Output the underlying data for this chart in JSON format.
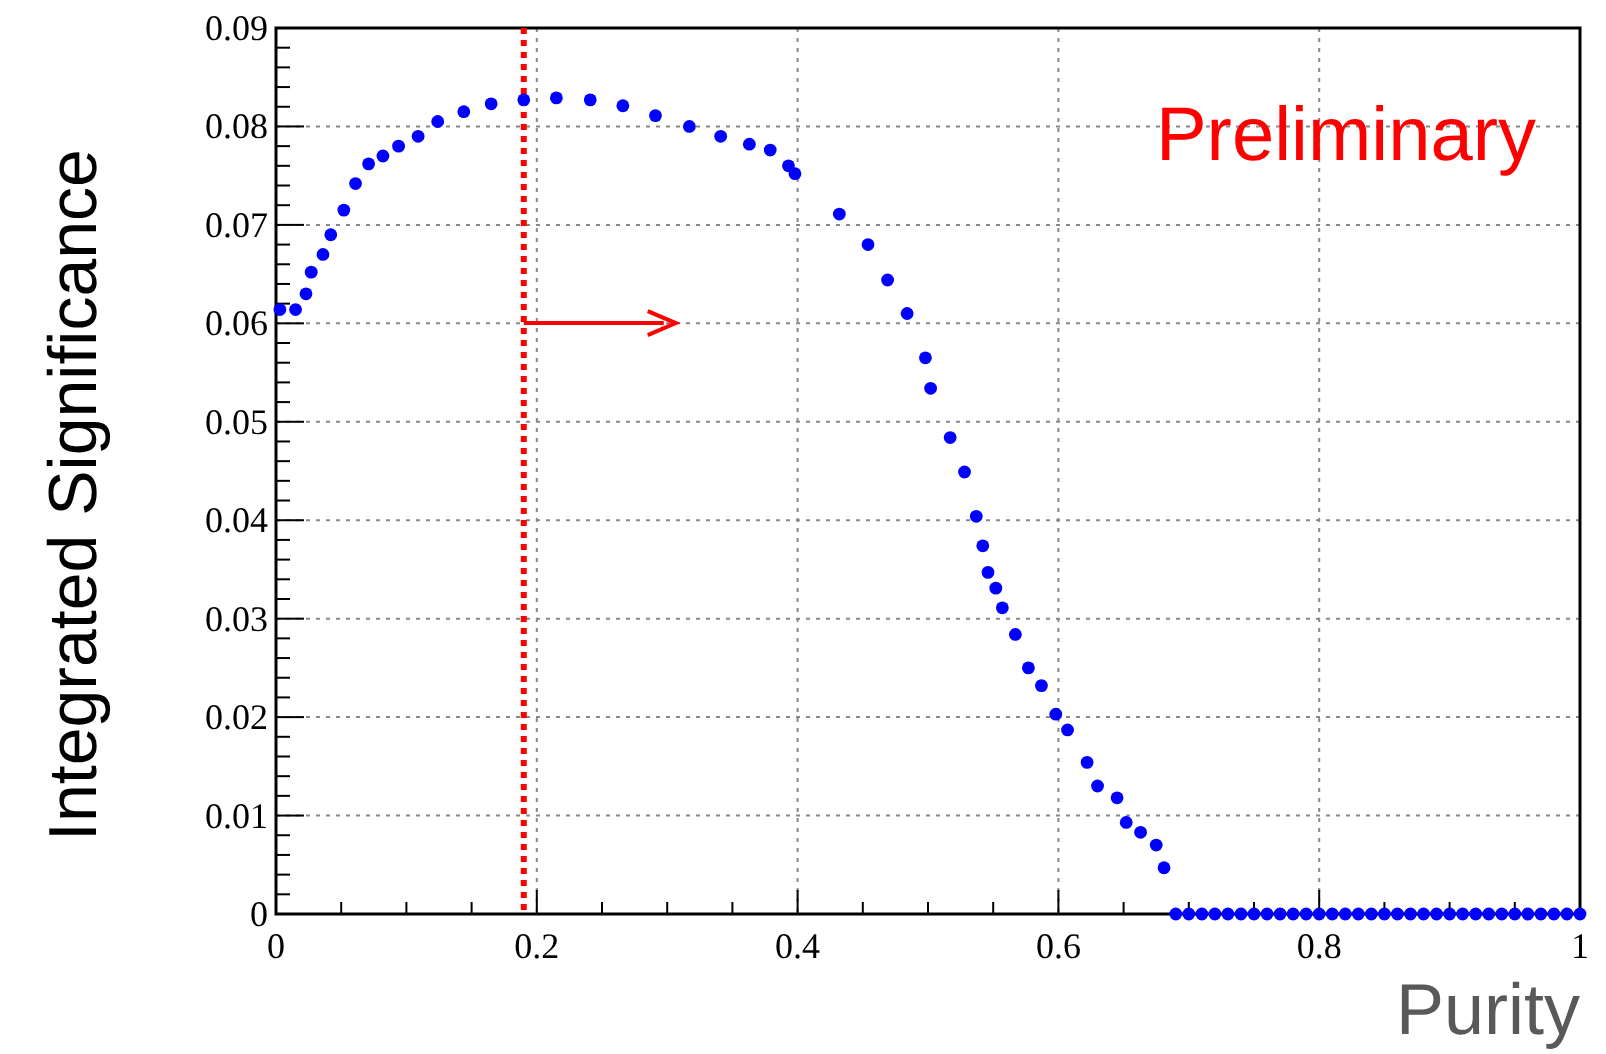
{
  "chart_data": {
    "type": "scatter",
    "xlabel": "Purity",
    "ylabel": "Integrated Significance",
    "annotations": [
      "Preliminary"
    ],
    "x": [
      0.003,
      0.015,
      0.023,
      0.027,
      0.036,
      0.042,
      0.052,
      0.061,
      0.071,
      0.082,
      0.094,
      0.109,
      0.124,
      0.144,
      0.165,
      0.19,
      0.215,
      0.241,
      0.266,
      0.291,
      0.317,
      0.341,
      0.363,
      0.379,
      0.393,
      0.398,
      0.432,
      0.454,
      0.469,
      0.484,
      0.498,
      0.502,
      0.517,
      0.528,
      0.537,
      0.542,
      0.546,
      0.552,
      0.557,
      0.567,
      0.577,
      0.587,
      0.598,
      0.607,
      0.622,
      0.63,
      0.645,
      0.652,
      0.663,
      0.675,
      0.681,
      0.69,
      0.7,
      0.71,
      0.72,
      0.73,
      0.74,
      0.75,
      0.76,
      0.77,
      0.78,
      0.79,
      0.8,
      0.81,
      0.82,
      0.83,
      0.84,
      0.85,
      0.86,
      0.87,
      0.88,
      0.89,
      0.9,
      0.91,
      0.92,
      0.93,
      0.94,
      0.95,
      0.96,
      0.97,
      0.98,
      0.99,
      1.0
    ],
    "series": [
      {
        "color": "#0000ff",
        "values": [
          0.0614,
          0.0614,
          0.063,
          0.0652,
          0.067,
          0.069,
          0.0715,
          0.0742,
          0.0762,
          0.077,
          0.078,
          0.079,
          0.0805,
          0.0815,
          0.0823,
          0.0827,
          0.0829,
          0.0827,
          0.0821,
          0.0811,
          0.08,
          0.079,
          0.0782,
          0.0776,
          0.076,
          0.0752,
          0.0711,
          0.068,
          0.0644,
          0.061,
          0.0565,
          0.0534,
          0.0484,
          0.0449,
          0.0404,
          0.0374,
          0.0347,
          0.0331,
          0.0311,
          0.0284,
          0.025,
          0.0232,
          0.0203,
          0.0187,
          0.0154,
          0.013,
          0.0118,
          0.0093,
          0.0083,
          0.007,
          0.0047,
          0,
          0,
          0,
          0,
          0,
          0,
          0,
          0,
          0,
          0,
          0,
          0,
          0,
          0,
          0,
          0,
          0,
          0,
          0,
          0,
          0,
          0,
          0,
          0,
          0,
          0,
          0,
          0,
          0,
          0,
          0,
          0
        ]
      }
    ],
    "xlim": [
      0,
      1
    ],
    "xticks": [
      0,
      0.2,
      0.4,
      0.6,
      0.8,
      1
    ],
    "ylim": [
      0,
      0.09
    ],
    "yticks": [
      0,
      0.01,
      0.02,
      0.03,
      0.04,
      0.05,
      0.06,
      0.07,
      0.08,
      0.09
    ],
    "ref_lines": [
      {
        "axis": "x",
        "value": 0.19,
        "color": "#ff0000",
        "line_style": "dotted"
      }
    ],
    "grid": true,
    "marker": "circle"
  }
}
